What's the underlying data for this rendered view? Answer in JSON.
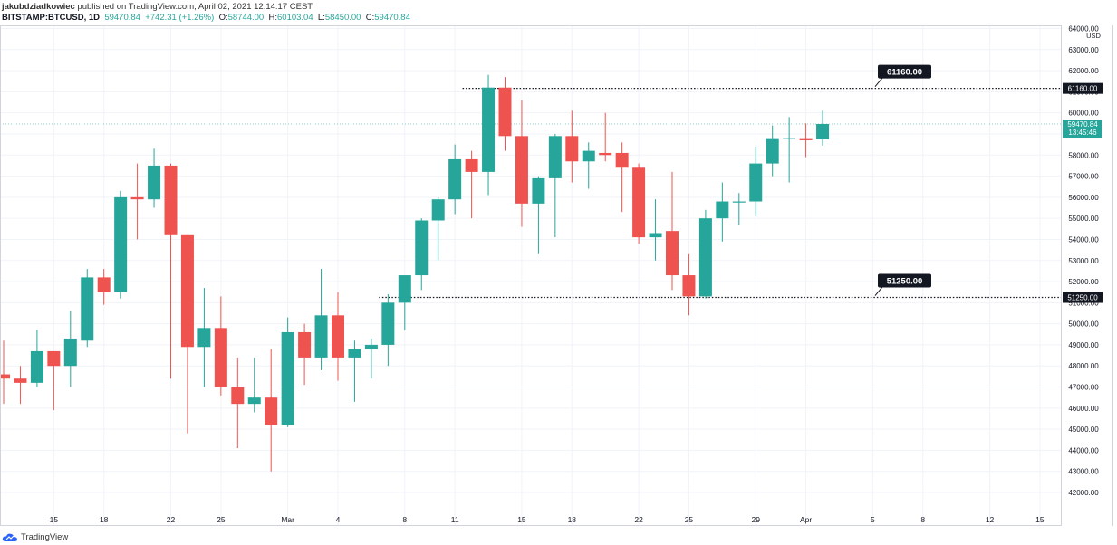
{
  "header": {
    "author": "jakubdziadkowiec",
    "published": "published on TradingView.com, April 02, 2021 12:14:17 CEST",
    "symbol": "BITSTAMP:BTCUSD, 1D",
    "last": "59470.84",
    "change": "+742.31 (+1.26%)",
    "o_label": "O:",
    "o_value": "58744.00",
    "h_label": "H:",
    "h_value": "60103.04",
    "l_label": "L:",
    "l_value": "58450.00",
    "c_label": "C:",
    "c_value": "59470.84"
  },
  "brand": {
    "label": "TradingView"
  },
  "chart_data": {
    "type": "candlestick",
    "currency": "USD",
    "colors": {
      "up": "#26a69a",
      "down": "#ef5350",
      "grid": "#f0f3fa",
      "axis_text": "#131722"
    },
    "y_range": [
      41000,
      64500
    ],
    "y_ticks": [
      64000,
      63000,
      62000,
      61000,
      60000,
      59000,
      58000,
      57000,
      56000,
      55000,
      54000,
      53000,
      52000,
      51000,
      50000,
      49000,
      48000,
      47000,
      46000,
      45000,
      44000,
      43000,
      42000
    ],
    "y_tick_labels": [
      "64000.00",
      "63000.00",
      "62000.00",
      "61000.00",
      "60000.00",
      "59000.00",
      "58000.00",
      "57000.00",
      "56000.00",
      "55000.00",
      "54000.00",
      "53000.00",
      "52000.00",
      "51000.00",
      "50000.00",
      "49000.00",
      "48000.00",
      "47000.00",
      "46000.00",
      "45000.00",
      "44000.00",
      "43000.00",
      "42000.00"
    ],
    "x_ticks": [
      {
        "i": 3,
        "label": "15"
      },
      {
        "i": 6,
        "label": "18"
      },
      {
        "i": 10,
        "label": "22"
      },
      {
        "i": 13,
        "label": "25"
      },
      {
        "i": 17,
        "label": "Mar"
      },
      {
        "i": 20,
        "label": "4"
      },
      {
        "i": 24,
        "label": "8"
      },
      {
        "i": 27,
        "label": "11"
      },
      {
        "i": 31,
        "label": "15"
      },
      {
        "i": 34,
        "label": "18"
      },
      {
        "i": 38,
        "label": "22"
      },
      {
        "i": 41,
        "label": "25"
      },
      {
        "i": 45,
        "label": "29"
      },
      {
        "i": 48,
        "label": "Apr"
      },
      {
        "i": 52,
        "label": "5"
      },
      {
        "i": 55,
        "label": "8"
      },
      {
        "i": 59,
        "label": "12"
      },
      {
        "i": 62,
        "label": "15"
      }
    ],
    "candles": [
      {
        "o": 47600,
        "h": 49200,
        "l": 46200,
        "c": 47400
      },
      {
        "o": 47400,
        "h": 48000,
        "l": 46200,
        "c": 47200
      },
      {
        "o": 47200,
        "h": 49700,
        "l": 47000,
        "c": 48700
      },
      {
        "o": 48700,
        "h": 48700,
        "l": 45900,
        "c": 48000
      },
      {
        "o": 48000,
        "h": 50600,
        "l": 47000,
        "c": 49300
      },
      {
        "o": 49200,
        "h": 52600,
        "l": 48900,
        "c": 52200
      },
      {
        "o": 52200,
        "h": 52600,
        "l": 50900,
        "c": 51500
      },
      {
        "o": 51500,
        "h": 56300,
        "l": 51200,
        "c": 56000
      },
      {
        "o": 56000,
        "h": 57600,
        "l": 54000,
        "c": 55900
      },
      {
        "o": 55900,
        "h": 58300,
        "l": 55500,
        "c": 57500
      },
      {
        "o": 57500,
        "h": 57600,
        "l": 47400,
        "c": 54200
      },
      {
        "o": 54200,
        "h": 54200,
        "l": 44800,
        "c": 48900
      },
      {
        "o": 48900,
        "h": 51700,
        "l": 47000,
        "c": 49800
      },
      {
        "o": 49800,
        "h": 51300,
        "l": 46600,
        "c": 47000
      },
      {
        "o": 47000,
        "h": 48400,
        "l": 44100,
        "c": 46200
      },
      {
        "o": 46200,
        "h": 48400,
        "l": 45800,
        "c": 46500
      },
      {
        "o": 46500,
        "h": 48800,
        "l": 43000,
        "c": 45200
      },
      {
        "o": 45200,
        "h": 50300,
        "l": 45100,
        "c": 49600
      },
      {
        "o": 49600,
        "h": 50000,
        "l": 47100,
        "c": 48400
      },
      {
        "o": 48400,
        "h": 52600,
        "l": 47800,
        "c": 50400
      },
      {
        "o": 50400,
        "h": 51500,
        "l": 47300,
        "c": 48400
      },
      {
        "o": 48400,
        "h": 49200,
        "l": 46300,
        "c": 48800
      },
      {
        "o": 48800,
        "h": 49300,
        "l": 47400,
        "c": 49000
      },
      {
        "o": 49000,
        "h": 51400,
        "l": 48000,
        "c": 51000
      },
      {
        "o": 51000,
        "h": 52200,
        "l": 49700,
        "c": 52300
      },
      {
        "o": 52300,
        "h": 55000,
        "l": 51600,
        "c": 54900
      },
      {
        "o": 54900,
        "h": 56000,
        "l": 53000,
        "c": 55900
      },
      {
        "o": 55900,
        "h": 58500,
        "l": 55200,
        "c": 57800
      },
      {
        "o": 57800,
        "h": 58200,
        "l": 55000,
        "c": 57200
      },
      {
        "o": 57200,
        "h": 61800,
        "l": 56100,
        "c": 61200
      },
      {
        "o": 61200,
        "h": 61700,
        "l": 58200,
        "c": 58900
      },
      {
        "o": 58900,
        "h": 60600,
        "l": 54600,
        "c": 55700
      },
      {
        "o": 55700,
        "h": 57000,
        "l": 53300,
        "c": 56900
      },
      {
        "o": 56900,
        "h": 59000,
        "l": 54100,
        "c": 58900
      },
      {
        "o": 58900,
        "h": 60100,
        "l": 56700,
        "c": 57700
      },
      {
        "o": 57700,
        "h": 58600,
        "l": 56400,
        "c": 58200
      },
      {
        "o": 58100,
        "h": 60000,
        "l": 57700,
        "c": 58000
      },
      {
        "o": 58100,
        "h": 58600,
        "l": 55300,
        "c": 57400
      },
      {
        "o": 57400,
        "h": 57600,
        "l": 53800,
        "c": 54100
      },
      {
        "o": 54100,
        "h": 55900,
        "l": 53000,
        "c": 54300
      },
      {
        "o": 54400,
        "h": 57200,
        "l": 51600,
        "c": 52300
      },
      {
        "o": 52300,
        "h": 53300,
        "l": 50400,
        "c": 51300
      },
      {
        "o": 51300,
        "h": 55400,
        "l": 51200,
        "c": 55000
      },
      {
        "o": 55000,
        "h": 56700,
        "l": 53900,
        "c": 55800
      },
      {
        "o": 55800,
        "h": 56200,
        "l": 54700,
        "c": 55800
      },
      {
        "o": 55800,
        "h": 58400,
        "l": 55100,
        "c": 57600
      },
      {
        "o": 57600,
        "h": 59400,
        "l": 57000,
        "c": 58800
      },
      {
        "o": 58800,
        "h": 59800,
        "l": 56700,
        "c": 58800
      },
      {
        "o": 58800,
        "h": 59500,
        "l": 57900,
        "c": 58700
      },
      {
        "o": 58744,
        "h": 60103.04,
        "l": 58450,
        "c": 59470.84
      }
    ],
    "price_lines": [
      {
        "name": "resistance",
        "price": 61160,
        "label": "61160.00",
        "callout": "61160.00",
        "start_i": 28
      },
      {
        "name": "support",
        "price": 51250,
        "label": "51250.00",
        "callout": "51250.00",
        "start_i": 23
      }
    ],
    "last_price": {
      "price": 59470.84,
      "label": "59470.84",
      "countdown": "13:45:46"
    }
  }
}
